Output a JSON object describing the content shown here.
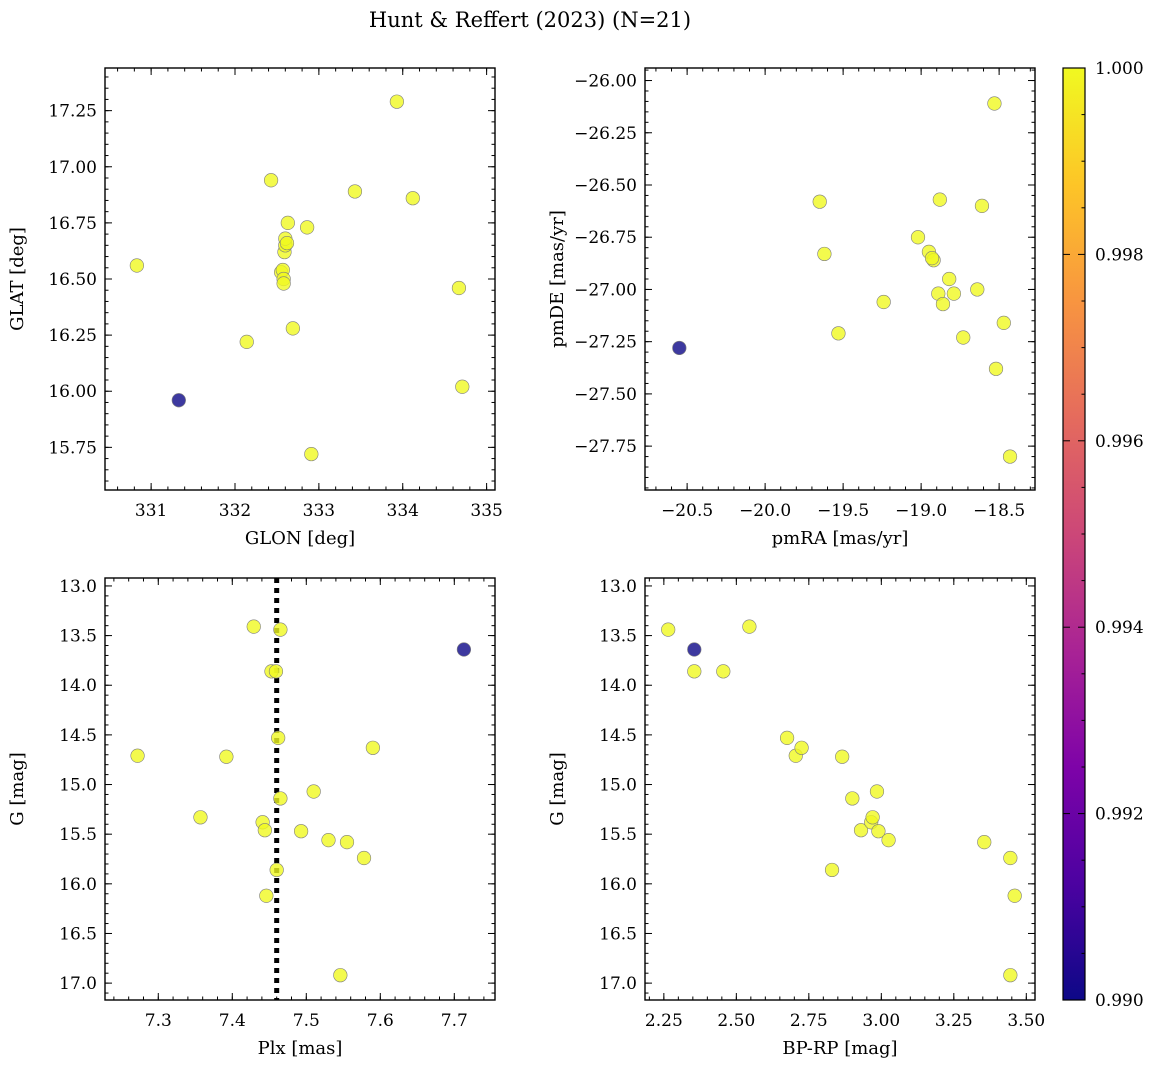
{
  "title": "Hunt & Reffert (2023) (N=21)",
  "colors": {
    "member": "#f0f921",
    "outlier": "#0d0887"
  },
  "colorbar": {
    "label": "",
    "cmap": "plasma",
    "range": [
      0.99,
      1.0
    ],
    "ticks": [
      0.99,
      0.992,
      0.994,
      0.996,
      0.998,
      1.0
    ],
    "tick_labels": [
      "0.990",
      "0.992",
      "0.994",
      "0.996",
      "0.998",
      "1.000"
    ]
  },
  "chart_data": [
    {
      "type": "scatter",
      "name": "sky",
      "xlabel": "GLON [deg]",
      "ylabel": "GLAT [deg]",
      "xlim": [
        330.45,
        335.1
      ],
      "ylim": [
        15.56,
        17.44
      ],
      "invert_y": false,
      "xticks": [
        331,
        332,
        333,
        334,
        335
      ],
      "xtick_labels": [
        "331",
        "332",
        "333",
        "334",
        "335"
      ],
      "yticks": [
        15.75,
        16.0,
        16.25,
        16.5,
        16.75,
        17.0,
        17.25
      ],
      "ytick_labels": [
        "15.75",
        "16.00",
        "16.25",
        "16.50",
        "16.75",
        "17.00",
        "17.25"
      ],
      "x": [
        330.83,
        331.33,
        332.14,
        332.43,
        332.55,
        332.57,
        332.58,
        332.58,
        332.59,
        332.6,
        332.6,
        332.63,
        332.69,
        332.86,
        332.91,
        333.43,
        333.93,
        334.12,
        334.67,
        334.71,
        332.62
      ],
      "y": [
        16.56,
        15.96,
        16.22,
        16.94,
        16.53,
        16.54,
        16.5,
        16.48,
        16.62,
        16.65,
        16.68,
        16.75,
        16.28,
        16.73,
        15.72,
        16.89,
        17.29,
        16.86,
        16.46,
        16.02,
        16.66
      ],
      "membership": [
        1.0,
        0.99,
        1.0,
        1.0,
        1.0,
        1.0,
        1.0,
        1.0,
        1.0,
        1.0,
        1.0,
        1.0,
        1.0,
        1.0,
        1.0,
        1.0,
        1.0,
        1.0,
        1.0,
        1.0,
        1.0
      ]
    },
    {
      "type": "scatter",
      "name": "proper-motion",
      "xlabel": "pmRA [mas/yr]",
      "ylabel": "pmDE [mas/yr]",
      "xlim": [
        -20.77,
        -18.27
      ],
      "ylim": [
        -27.96,
        -25.94
      ],
      "invert_y": false,
      "xticks": [
        -20.5,
        -20.0,
        -19.5,
        -19.0,
        -18.5
      ],
      "xtick_labels": [
        "−20.5",
        "−20.0",
        "−19.5",
        "−19.0",
        "−18.5"
      ],
      "yticks": [
        -27.75,
        -27.5,
        -27.25,
        -27.0,
        -26.75,
        -26.5,
        -26.25,
        -26.0
      ],
      "ytick_labels": [
        "−27.75",
        "−27.50",
        "−27.25",
        "−27.00",
        "−26.75",
        "−26.50",
        "−26.25",
        "−26.00"
      ],
      "x": [
        -20.55,
        -19.65,
        -19.62,
        -19.53,
        -19.24,
        -19.02,
        -18.95,
        -18.92,
        -18.89,
        -18.88,
        -18.86,
        -18.82,
        -18.79,
        -18.73,
        -18.64,
        -18.61,
        -18.53,
        -18.52,
        -18.47,
        -18.43,
        -18.93
      ],
      "y": [
        -27.28,
        -26.58,
        -26.83,
        -27.21,
        -27.06,
        -26.75,
        -26.82,
        -26.86,
        -27.02,
        -26.57,
        -27.07,
        -26.95,
        -27.02,
        -27.23,
        -27.0,
        -26.6,
        -26.11,
        -27.38,
        -27.16,
        -27.8,
        -26.85
      ],
      "membership": [
        0.99,
        1.0,
        1.0,
        1.0,
        1.0,
        1.0,
        1.0,
        1.0,
        1.0,
        1.0,
        1.0,
        1.0,
        1.0,
        1.0,
        1.0,
        1.0,
        1.0,
        1.0,
        1.0,
        1.0,
        1.0
      ]
    },
    {
      "type": "scatter",
      "name": "g-vs-parallax",
      "xlabel": "Plx [mas]",
      "ylabel": "G [mag]",
      "xlim": [
        7.228,
        7.755
      ],
      "ylim": [
        17.17,
        12.92
      ],
      "invert_y": true,
      "xticks": [
        7.3,
        7.4,
        7.5,
        7.6,
        7.7
      ],
      "xtick_labels": [
        "7.3",
        "7.4",
        "7.5",
        "7.6",
        "7.7"
      ],
      "yticks": [
        13.0,
        13.5,
        14.0,
        14.5,
        15.0,
        15.5,
        16.0,
        16.5,
        17.0
      ],
      "ytick_labels": [
        "13.0",
        "13.5",
        "14.0",
        "14.5",
        "15.0",
        "15.5",
        "16.0",
        "16.5",
        "17.0"
      ],
      "ref_line_x": 7.46,
      "x": [
        7.272,
        7.357,
        7.392,
        7.429,
        7.441,
        7.444,
        7.446,
        7.453,
        7.459,
        7.46,
        7.462,
        7.465,
        7.465,
        7.493,
        7.51,
        7.53,
        7.546,
        7.555,
        7.578,
        7.59,
        7.713
      ],
      "y": [
        14.71,
        15.33,
        14.72,
        13.41,
        15.38,
        15.46,
        16.12,
        13.86,
        13.86,
        15.86,
        14.53,
        13.44,
        15.14,
        15.47,
        15.07,
        15.56,
        16.92,
        15.58,
        15.74,
        14.63,
        13.64
      ],
      "membership": [
        1.0,
        1.0,
        1.0,
        1.0,
        1.0,
        1.0,
        1.0,
        1.0,
        1.0,
        1.0,
        1.0,
        1.0,
        1.0,
        1.0,
        1.0,
        1.0,
        1.0,
        1.0,
        1.0,
        1.0,
        0.99
      ]
    },
    {
      "type": "scatter",
      "name": "cmd",
      "xlabel": "BP-RP [mag]",
      "ylabel": "G [mag]",
      "xlim": [
        2.185,
        3.53
      ],
      "ylim": [
        17.17,
        12.92
      ],
      "invert_y": true,
      "xticks": [
        2.25,
        2.5,
        2.75,
        3.0,
        3.25,
        3.5
      ],
      "xtick_labels": [
        "2.25",
        "2.50",
        "2.75",
        "3.00",
        "3.25",
        "3.50"
      ],
      "yticks": [
        13.0,
        13.5,
        14.0,
        14.5,
        15.0,
        15.5,
        16.0,
        16.5,
        17.0
      ],
      "ytick_labels": [
        "13.0",
        "13.5",
        "14.0",
        "14.5",
        "15.0",
        "15.5",
        "16.0",
        "16.5",
        "17.0"
      ],
      "x": [
        2.265,
        2.355,
        2.355,
        2.455,
        2.545,
        2.675,
        2.705,
        2.725,
        2.83,
        2.865,
        2.9,
        2.93,
        2.965,
        2.97,
        2.985,
        2.99,
        3.025,
        3.355,
        3.445,
        3.445,
        3.46
      ],
      "y": [
        13.44,
        13.64,
        13.86,
        13.86,
        13.41,
        14.53,
        14.71,
        14.63,
        15.86,
        14.72,
        15.14,
        15.46,
        15.38,
        15.33,
        15.07,
        15.47,
        15.56,
        15.58,
        15.74,
        16.92,
        16.12
      ],
      "membership": [
        1.0,
        0.99,
        1.0,
        1.0,
        1.0,
        1.0,
        1.0,
        1.0,
        1.0,
        1.0,
        1.0,
        1.0,
        1.0,
        1.0,
        1.0,
        1.0,
        1.0,
        1.0,
        1.0,
        1.0,
        1.0
      ]
    }
  ]
}
